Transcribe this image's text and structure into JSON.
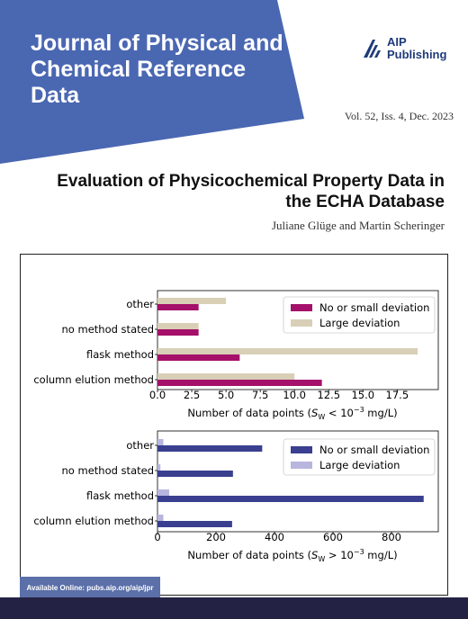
{
  "cover": {
    "journal_title": "Journal of Physical and Chemical Reference Data",
    "publisher_line1": "AIP",
    "publisher_line2": "Publishing",
    "issue": "Vol. 52, Iss. 4, Dec. 2023",
    "article_title": "Evaluation of Physicochemical Property Data in the ECHA Database",
    "authors": "Juliane Glüge and Martin Scheringer",
    "online_note": "Available Online: pubs.aip.org/aip/jpr",
    "colors": {
      "banner": "#4a67b2",
      "footer": "#242244",
      "online_box": "#5b6fa9",
      "publisher_logo": "#1f3a7a"
    },
    "icons": {
      "publisher_logo": "aip-stripes-logo"
    }
  },
  "chart_data": [
    {
      "type": "bar",
      "orientation": "horizontal",
      "categories": [
        "column elution method",
        "flask method",
        "no method stated",
        "other"
      ],
      "series": [
        {
          "name": "No or small deviation",
          "values": [
            12,
            6,
            3,
            3
          ],
          "color": "#a4106a"
        },
        {
          "name": "Large deviation",
          "values": [
            10,
            19,
            3,
            5
          ],
          "color": "#d8cfb6"
        }
      ],
      "xlabel_main": "Number of data points (",
      "xlabel_symbol": "S",
      "xlabel_sub": "W",
      "xlabel_rest": " < 10",
      "xlabel_exp": "−3",
      "xlabel_unit": " mg/L)",
      "xlim": [
        0,
        20.5
      ],
      "xticks": [
        0.0,
        2.5,
        5.0,
        7.5,
        10.0,
        12.5,
        15.0,
        17.5
      ],
      "xtick_labels": [
        "0.0",
        "2.5",
        "5.0",
        "7.5",
        "10.0",
        "12.5",
        "15.0",
        "17.5"
      ],
      "legend_position": "top-right",
      "grid": false
    },
    {
      "type": "bar",
      "orientation": "horizontal",
      "categories": [
        "column elution method",
        "flask method",
        "no method stated",
        "other"
      ],
      "series": [
        {
          "name": "No or small deviation",
          "values": [
            255,
            910,
            258,
            358
          ],
          "color": "#3a3f8f"
        },
        {
          "name": "Large deviation",
          "values": [
            20,
            40,
            10,
            20
          ],
          "color": "#b8b5de"
        }
      ],
      "xlabel_main": "Number of data points (",
      "xlabel_symbol": "S",
      "xlabel_sub": "W",
      "xlabel_rest": " > 10",
      "xlabel_exp": "−3",
      "xlabel_unit": " mg/L)",
      "xlim": [
        0,
        960
      ],
      "xticks": [
        0,
        200,
        400,
        600,
        800
      ],
      "xtick_labels": [
        "0",
        "200",
        "400",
        "600",
        "800"
      ],
      "legend_position": "top-right",
      "grid": false
    }
  ]
}
